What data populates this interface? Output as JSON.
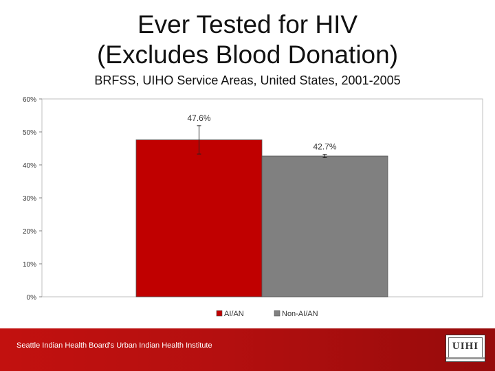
{
  "slide": {
    "title_line1": "Ever Tested for HIV",
    "title_line2": "(Excludes Blood Donation)",
    "subtitle": "BRFSS, UIHO Service Areas, United States, 2001-2005",
    "footer": "Seattle Indian Health Board's Urban Indian Health Institute",
    "logo_text": "UIHI"
  },
  "colors": {
    "ai_an": "#c00000",
    "non_ai_an": "#808080",
    "footer_band": "#b40f0f"
  },
  "chart_data": {
    "type": "bar",
    "categories": [
      "AI/AN",
      "Non-AI/AN"
    ],
    "values": [
      47.6,
      42.7
    ],
    "data_labels": [
      "47.6%",
      "42.7%"
    ],
    "error_bars": [
      [
        43.3,
        51.9
      ],
      [
        42.2,
        43.2
      ]
    ],
    "legend": [
      "AI/AN",
      "Non-AI/AN"
    ],
    "legend_position": "bottom",
    "ylim": [
      0,
      60
    ],
    "yticks": [
      0,
      10,
      20,
      30,
      40,
      50,
      60
    ],
    "ytick_labels": [
      "0%",
      "10%",
      "20%",
      "30%",
      "40%",
      "50%",
      "60%"
    ],
    "grid": false
  }
}
